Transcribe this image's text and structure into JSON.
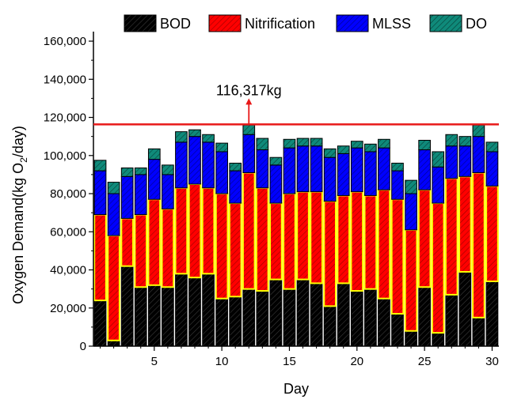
{
  "chart_data": {
    "type": "bar",
    "stacked": true,
    "xlabel": "Day",
    "ylabel_main": "Oxygen Demand(kg O",
    "ylabel_sub": "2",
    "ylabel_tail": "/day)",
    "ylim": [
      0,
      165000
    ],
    "yticks": [
      0,
      20000,
      40000,
      60000,
      80000,
      100000,
      120000,
      140000,
      160000
    ],
    "ytick_labels": [
      "0",
      "20,000",
      "40,000",
      "60,000",
      "80,000",
      "100,000",
      "120,000",
      "140,000",
      "160,000"
    ],
    "xlim": [
      0.5,
      30.5
    ],
    "xticks": [
      5,
      10,
      15,
      20,
      25,
      30
    ],
    "xtick_labels": [
      "5",
      "10",
      "15",
      "20",
      "25",
      "30"
    ],
    "legend_position": "top",
    "x": [
      1,
      2,
      3,
      4,
      5,
      6,
      7,
      8,
      9,
      10,
      11,
      12,
      13,
      14,
      15,
      16,
      17,
      18,
      19,
      20,
      21,
      22,
      23,
      24,
      25,
      26,
      27,
      28,
      29,
      30
    ],
    "series": [
      {
        "name": "BOD",
        "color": "#000000",
        "values": [
          24000,
          3000,
          42000,
          31000,
          32000,
          31000,
          38000,
          36000,
          38000,
          25000,
          26000,
          30000,
          29000,
          35000,
          30000,
          35000,
          33000,
          21000,
          33000,
          29000,
          30000,
          25000,
          17000,
          8000,
          31000,
          7000,
          27000,
          39000,
          15000,
          34000
        ]
      },
      {
        "name": "Nitrification",
        "color": "#ff0000",
        "values": [
          45000,
          55000,
          25000,
          38000,
          45000,
          41000,
          45000,
          49000,
          45000,
          55000,
          49000,
          61000,
          54000,
          40000,
          50000,
          46000,
          48000,
          55000,
          46000,
          52000,
          49000,
          57000,
          60000,
          53000,
          51000,
          68000,
          61000,
          50000,
          76000,
          50000
        ]
      },
      {
        "name": "MLSS",
        "color": "#0000ff",
        "values": [
          23000,
          22000,
          22000,
          21000,
          21000,
          18000,
          24000,
          25000,
          24000,
          22000,
          17000,
          20000,
          20000,
          20000,
          24000,
          24000,
          24000,
          23000,
          22000,
          23000,
          23000,
          22000,
          15000,
          19000,
          21000,
          19000,
          17000,
          16000,
          19000,
          18000
        ]
      },
      {
        "name": "DO",
        "color": "#0f8a7a",
        "values": [
          5500,
          6000,
          4500,
          3500,
          5500,
          5000,
          5500,
          3500,
          4000,
          4500,
          4000,
          5000,
          6000,
          4000,
          4500,
          4000,
          4000,
          4500,
          4000,
          3500,
          4000,
          4500,
          4000,
          7000,
          5000,
          8000,
          6000,
          5000,
          6000,
          5000
        ]
      }
    ],
    "reference_line": {
      "value": 116317,
      "color": "#e81818",
      "label": "116,317kg",
      "label_x": 12
    }
  }
}
